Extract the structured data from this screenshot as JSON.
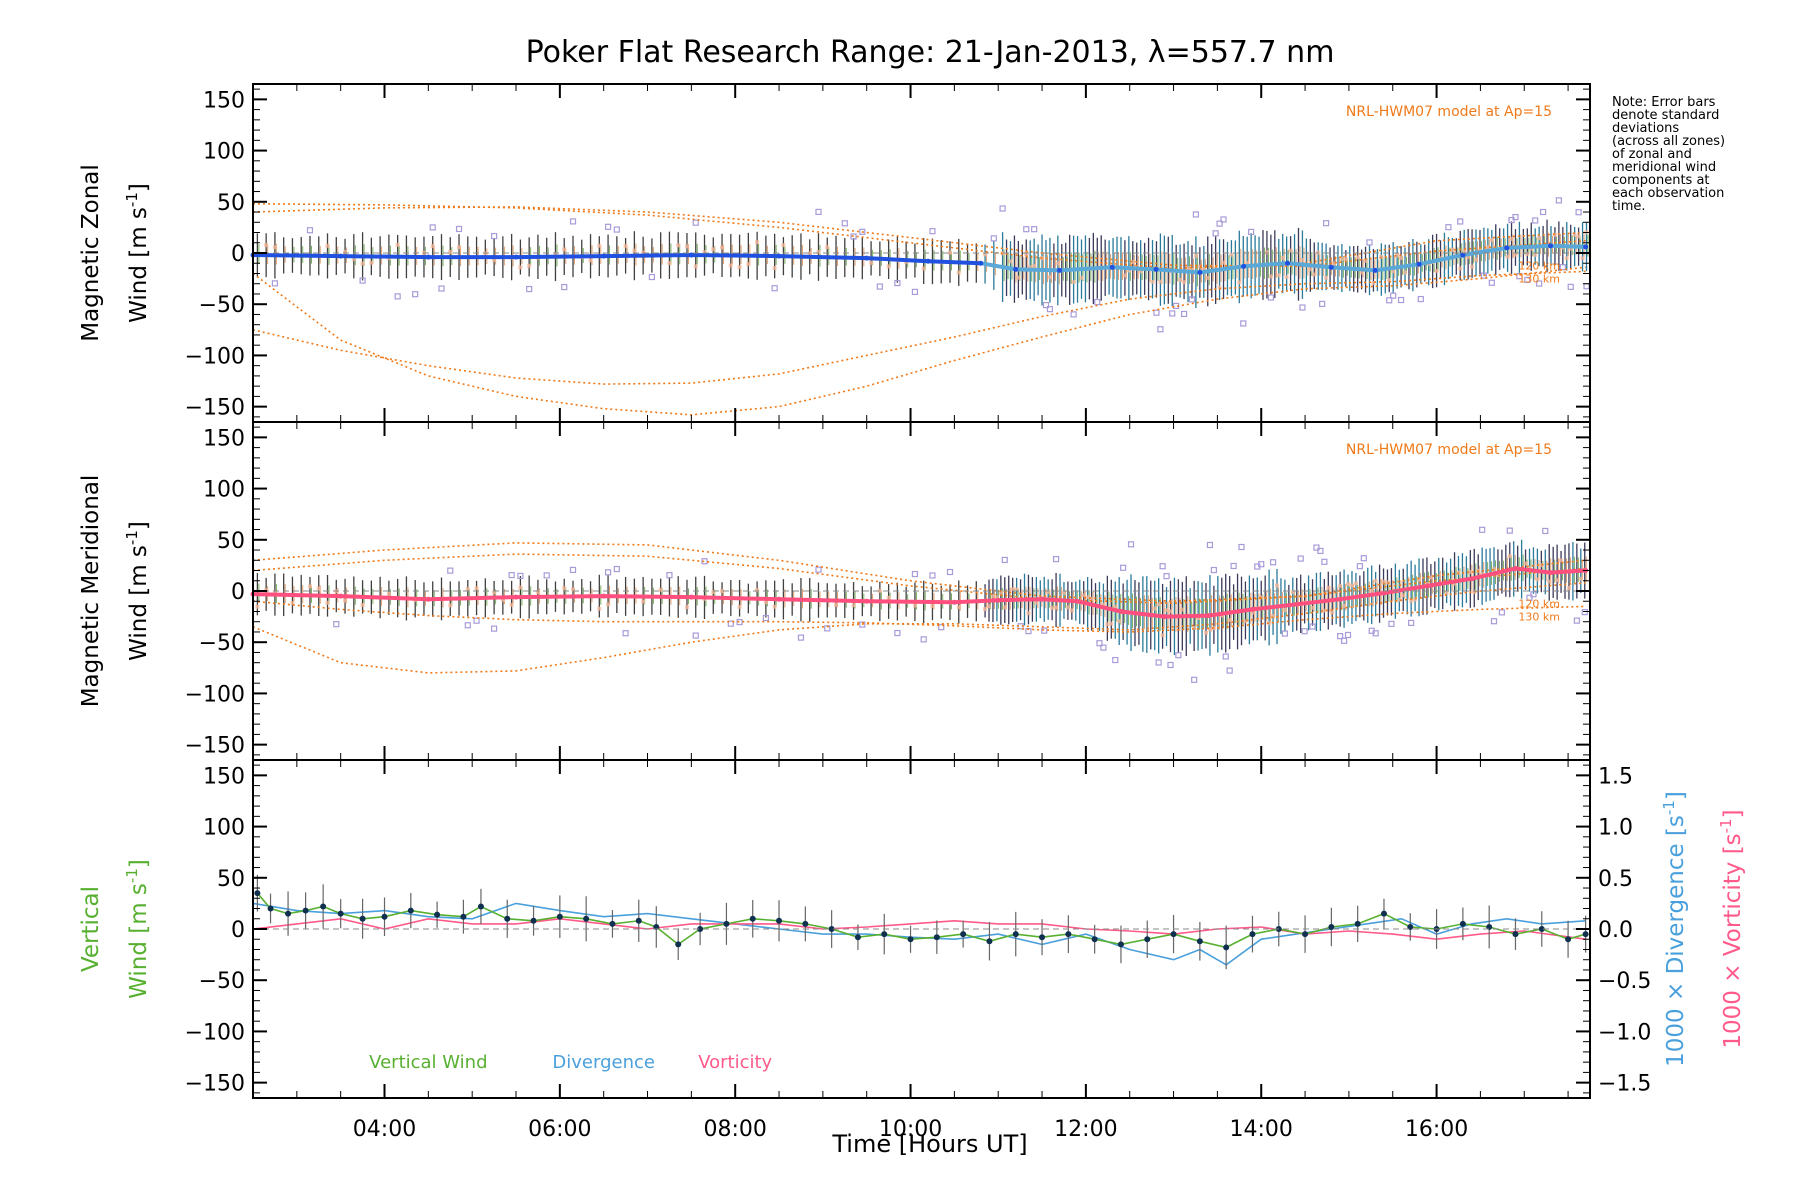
{
  "chart_data": {
    "type": "line",
    "title": "Poker Flat Research Range: 21-Jan-2013, λ=557.7 nm",
    "xlabel": "Time [Hours UT]",
    "x_range": [
      2.5,
      17.75
    ],
    "x_ticks": [
      4,
      6,
      8,
      10,
      12,
      14,
      16
    ],
    "x_tick_labels": [
      "04:00",
      "06:00",
      "08:00",
      "10:00",
      "12:00",
      "14:00",
      "16:00"
    ],
    "note": "Note: Error bars\ndenote standard\ndeviations\n(across all zones)\nof zonal and\nmeridional wind\ncomponents at\neach observation\ntime.",
    "colors": {
      "zonal": "#2050e0",
      "zonal_late": "#5aa8d8",
      "meridional": "#ff4f7e",
      "model": "#f07a1a",
      "zones": "#a99ad8",
      "errorbar": "#404040",
      "vertical": "#58b030",
      "divergence": "#4aa0dc",
      "vorticity": "#ff5a8a",
      "dots": "#103050"
    },
    "panels": [
      {
        "id": "zonal",
        "ylabel_line1": "Magnetic Zonal",
        "ylabel_line2": "Wind [m s",
        "ylabel_sup": "-1",
        "ylabel_close": "]",
        "ylim": [
          -165,
          165
        ],
        "y_ticks": [
          150,
          100,
          50,
          0,
          -50,
          -100,
          -150
        ],
        "y_tick_labels": [
          "150",
          "100",
          "50",
          "0",
          "−50",
          "−100",
          "−150"
        ],
        "model_label": "NRL-HWM07 model at Ap=15",
        "alt_labels": [
          "120 km",
          "130 km"
        ],
        "series": [
          {
            "name": "Zonal wind (mean)",
            "x": [
              2.5,
              3.5,
              4.5,
              5.5,
              6.5,
              7.5,
              8.5,
              9.5,
              10.2,
              10.8,
              11.2,
              11.7,
              12.3,
              12.8,
              13.3,
              13.8,
              14.3,
              14.8,
              15.3,
              15.8,
              16.3,
              16.8,
              17.3,
              17.7
            ],
            "y": [
              -2,
              -3,
              -4,
              -4,
              -3,
              -2,
              -3,
              -5,
              -8,
              -10,
              -16,
              -17,
              -14,
              -16,
              -19,
              -13,
              -10,
              -14,
              -17,
              -11,
              -2,
              5,
              7,
              6
            ]
          },
          {
            "name": "Model 120 km (upper)",
            "x": [
              2.5,
              4,
              5.5,
              7,
              8.5,
              10,
              11.5,
              13,
              14.5,
              16,
              17.7
            ],
            "y": [
              48,
              47,
              44,
              37,
              25,
              10,
              -5,
              -15,
              -10,
              12,
              20
            ]
          },
          {
            "name": "Model 130 km (upper)",
            "x": [
              2.5,
              4,
              5.5,
              7,
              8.5,
              10,
              11.5,
              13,
              14.5,
              16,
              17.7
            ],
            "y": [
              40,
              44,
              45,
              40,
              30,
              15,
              0,
              -12,
              -13,
              2,
              12
            ]
          },
          {
            "name": "Model 120 km (lower)",
            "x": [
              2.5,
              3.5,
              4.5,
              5.5,
              6.5,
              7.5,
              8.5,
              9.5,
              10.5,
              11.5,
              12.5,
              13.5,
              14.5,
              15.5,
              16.5,
              17.7
            ],
            "y": [
              -20,
              -85,
              -120,
              -140,
              -152,
              -158,
              -150,
              -130,
              -105,
              -82,
              -60,
              -45,
              -35,
              -32,
              -25,
              -14
            ]
          },
          {
            "name": "Model 130 km (lower)",
            "x": [
              2.5,
              3.5,
              4.5,
              5.5,
              6.5,
              7.5,
              8.5,
              9.5,
              10.5,
              11.5,
              12.5,
              13.5,
              14.5,
              15.5,
              16.5,
              17.7
            ],
            "y": [
              -75,
              -95,
              -110,
              -122,
              -128,
              -127,
              -118,
              -100,
              -82,
              -62,
              -45,
              -35,
              -30,
              -28,
              -22,
              -18
            ]
          }
        ]
      },
      {
        "id": "meridional",
        "ylabel_line1": "Magnetic Meridional",
        "ylabel_line2": "Wind [m s",
        "ylabel_sup": "-1",
        "ylabel_close": "]",
        "ylim": [
          -165,
          165
        ],
        "y_ticks": [
          150,
          100,
          50,
          0,
          -50,
          -100,
          -150
        ],
        "y_tick_labels": [
          "150",
          "100",
          "50",
          "0",
          "−50",
          "−100",
          "−150"
        ],
        "model_label": "NRL-HWM07 model at Ap=15",
        "alt_labels": [
          "120 km",
          "130 km"
        ],
        "series": [
          {
            "name": "Meridional wind (mean)",
            "x": [
              2.5,
              3.5,
              4.5,
              5.5,
              6.5,
              7.5,
              8.5,
              9.5,
              10.5,
              11.0,
              11.5,
              11.9,
              12.4,
              12.9,
              13.4,
              13.9,
              14.4,
              14.9,
              15.4,
              15.9,
              16.4,
              16.9,
              17.3,
              17.7
            ],
            "y": [
              -3,
              -5,
              -8,
              -6,
              -5,
              -6,
              -8,
              -10,
              -11,
              -9,
              -8,
              -10,
              -20,
              -25,
              -24,
              -18,
              -13,
              -8,
              -2,
              5,
              12,
              22,
              18,
              20
            ]
          },
          {
            "name": "Model 120 km (upper)",
            "x": [
              2.5,
              4,
              5.5,
              7,
              8.5,
              10,
              11.5,
              13,
              14.5,
              16,
              17.7
            ],
            "y": [
              30,
              40,
              47,
              45,
              30,
              10,
              -5,
              -10,
              -5,
              15,
              30
            ]
          },
          {
            "name": "Model 130 km (upper)",
            "x": [
              2.5,
              4,
              5.5,
              7,
              8.5,
              10,
              11.5,
              13,
              14.5,
              16,
              17.7
            ],
            "y": [
              20,
              30,
              36,
              34,
              22,
              5,
              -8,
              -12,
              -5,
              10,
              22
            ]
          },
          {
            "name": "Model 120 km (lower)",
            "x": [
              2.5,
              3.5,
              4.5,
              5.5,
              6.5,
              7.5,
              8.5,
              9.5,
              10.5,
              11.5,
              12.5,
              13.5,
              14.5,
              15.5,
              16.5,
              17.7
            ],
            "y": [
              -35,
              -70,
              -80,
              -78,
              -65,
              -50,
              -38,
              -32,
              -32,
              -35,
              -38,
              -32,
              -22,
              -10,
              0,
              8
            ]
          },
          {
            "name": "Model 130 km (lower)",
            "x": [
              2.5,
              3.5,
              4.5,
              5.5,
              6.5,
              7.5,
              8.5,
              9.5,
              10.5,
              11.5,
              12.5,
              13.5,
              14.5,
              15.5,
              16.5,
              17.7
            ],
            "y": [
              -10,
              -18,
              -24,
              -28,
              -30,
              -30,
              -30,
              -31,
              -34,
              -38,
              -40,
              -36,
              -28,
              -22,
              -18,
              -15
            ]
          }
        ]
      },
      {
        "id": "vertical",
        "ylabel_line1": "Vertical",
        "ylabel_line2": "Wind [m s",
        "ylabel_sup": "-1",
        "ylabel_close": "]",
        "ylim": [
          -165,
          165
        ],
        "y_ticks": [
          150,
          100,
          50,
          0,
          -50,
          -100,
          -150
        ],
        "y_tick_labels": [
          "150",
          "100",
          "50",
          "0",
          "−50",
          "−100",
          "−150"
        ],
        "y2lim": [
          -1.65,
          1.65
        ],
        "y2_ticks": [
          1.5,
          1.0,
          0.5,
          0.0,
          -0.5,
          -1.0,
          -1.5
        ],
        "y2_tick_labels": [
          "1.5",
          "1.0",
          "0.5",
          "0.0",
          "−0.5",
          "−1.0",
          "−1.5"
        ],
        "y2label_div": "1000 × Divergence [s",
        "y2label_vor": "1000 × Vorticity [s",
        "y2label_sup": "-1",
        "y2label_close": "]",
        "legend": [
          "Vertical Wind",
          "Divergence",
          "Vorticity"
        ],
        "series": [
          {
            "name": "Vertical Wind",
            "axis": "left",
            "x": [
              2.55,
              2.7,
              2.9,
              3.1,
              3.3,
              3.5,
              3.75,
              4.0,
              4.3,
              4.6,
              4.9,
              5.1,
              5.4,
              5.7,
              6.0,
              6.3,
              6.6,
              6.9,
              7.1,
              7.35,
              7.6,
              7.9,
              8.2,
              8.5,
              8.8,
              9.1,
              9.4,
              9.7,
              10.0,
              10.3,
              10.6,
              10.9,
              11.2,
              11.5,
              11.8,
              12.1,
              12.4,
              12.7,
              13.0,
              13.3,
              13.6,
              13.9,
              14.2,
              14.5,
              14.8,
              15.1,
              15.4,
              15.7,
              16.0,
              16.3,
              16.6,
              16.9,
              17.2,
              17.5,
              17.7
            ],
            "y": [
              35,
              20,
              15,
              18,
              22,
              15,
              10,
              12,
              18,
              14,
              12,
              22,
              10,
              8,
              12,
              10,
              5,
              8,
              2,
              -15,
              0,
              5,
              10,
              8,
              5,
              0,
              -8,
              -5,
              -10,
              -8,
              -5,
              -12,
              -5,
              -8,
              -5,
              -10,
              -15,
              -10,
              -5,
              -12,
              -18,
              -5,
              0,
              -5,
              2,
              5,
              15,
              2,
              0,
              5,
              2,
              -5,
              0,
              -10,
              -5
            ]
          },
          {
            "name": "Divergence",
            "axis": "right",
            "x": [
              2.5,
              3.0,
              3.5,
              4.0,
              4.5,
              5.0,
              5.5,
              6.0,
              6.5,
              7.0,
              7.5,
              8.0,
              8.5,
              9.0,
              9.5,
              10.0,
              10.5,
              11.0,
              11.5,
              12.0,
              12.5,
              13.0,
              13.3,
              13.6,
              14.0,
              14.4,
              14.8,
              15.2,
              15.6,
              16.0,
              16.4,
              16.8,
              17.2,
              17.7
            ],
            "y": [
              0.25,
              0.18,
              0.15,
              0.18,
              0.12,
              0.1,
              0.25,
              0.18,
              0.12,
              0.15,
              0.1,
              0.05,
              0.0,
              -0.05,
              -0.05,
              -0.08,
              -0.1,
              -0.05,
              -0.15,
              -0.05,
              -0.2,
              -0.3,
              -0.2,
              -0.35,
              -0.1,
              -0.05,
              0.0,
              0.05,
              0.1,
              -0.05,
              0.05,
              0.1,
              0.05,
              0.08
            ]
          },
          {
            "name": "Vorticity",
            "axis": "right",
            "x": [
              2.5,
              3.0,
              3.5,
              4.0,
              4.5,
              5.0,
              5.5,
              6.0,
              6.5,
              7.0,
              7.5,
              8.0,
              8.5,
              9.0,
              9.5,
              10.0,
              10.5,
              11.0,
              11.5,
              12.0,
              12.5,
              13.0,
              13.5,
              14.0,
              14.5,
              15.0,
              15.5,
              16.0,
              16.5,
              17.0,
              17.7
            ],
            "y": [
              0.0,
              0.05,
              0.1,
              0.0,
              0.1,
              0.05,
              0.05,
              0.1,
              0.05,
              0.0,
              0.05,
              0.05,
              0.05,
              0.0,
              0.02,
              0.05,
              0.08,
              0.05,
              0.05,
              0.0,
              -0.02,
              -0.05,
              0.0,
              0.02,
              -0.05,
              -0.02,
              -0.05,
              -0.1,
              -0.05,
              -0.02,
              -0.1
            ]
          }
        ]
      }
    ]
  }
}
